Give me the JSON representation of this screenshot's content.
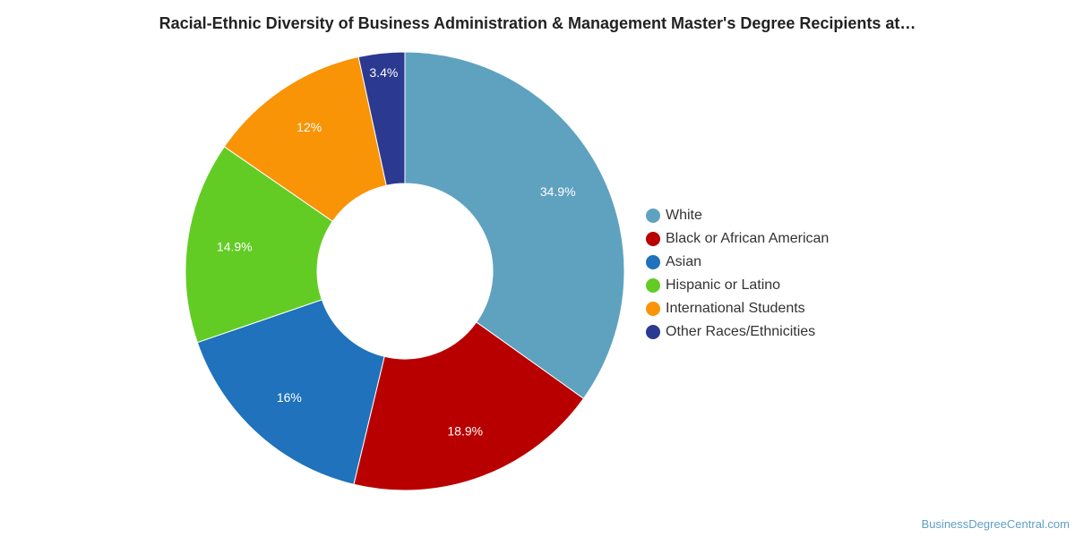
{
  "chart_data": {
    "type": "pie",
    "title": "Racial-Ethnic Diversity of Business Administration & Management Master's Degree Recipients at…",
    "donut": true,
    "legend_position": "right",
    "slices": [
      {
        "label": "White",
        "value": 34.9,
        "display": "34.9%",
        "color": "#5ea2c0"
      },
      {
        "label": "Black or African American",
        "value": 18.9,
        "display": "18.9%",
        "color": "#b90000"
      },
      {
        "label": "Asian",
        "value": 16,
        "display": "16%",
        "color": "#1f72bb"
      },
      {
        "label": "Hispanic or Latino",
        "value": 14.9,
        "display": "14.9%",
        "color": "#62cc25"
      },
      {
        "label": "International Students",
        "value": 12,
        "display": "12%",
        "color": "#f89406"
      },
      {
        "label": "Other Races/Ethnicities",
        "value": 3.4,
        "display": "3.4%",
        "color": "#2b3990"
      }
    ]
  },
  "watermark": "BusinessDegreeCentral.com"
}
